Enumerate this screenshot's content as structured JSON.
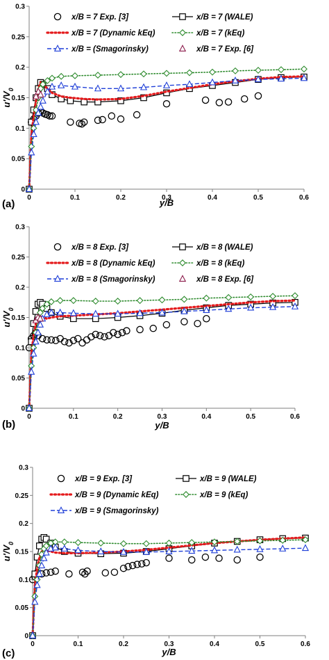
{
  "chart_data": [
    {
      "type": "line",
      "panel_label": "(a)",
      "xlabel": "y/B",
      "ylabel": "u'/V0",
      "xlim": [
        0,
        0.6
      ],
      "ylim": [
        0,
        0.3
      ],
      "x_ticks": [
        "0",
        "0.1",
        "0.2",
        "0.3",
        "0.4",
        "0.5",
        "0.6"
      ],
      "y_ticks": [
        "0",
        "0.05",
        "0.1",
        "0.15",
        "0.2",
        "0.25",
        "0.3"
      ],
      "grid": false,
      "legend_position": "top",
      "series": [
        {
          "name": "x/B = 7 Exp. [3]",
          "style": "marker-circle",
          "color": "#000000",
          "x": [
            0.005,
            0.01,
            0.015,
            0.02,
            0.025,
            0.03,
            0.035,
            0.04,
            0.045,
            0.05,
            0.09,
            0.11,
            0.115,
            0.12,
            0.15,
            0.16,
            0.18,
            0.2,
            0.235,
            0.3,
            0.385,
            0.415,
            0.435,
            0.47,
            0.5
          ],
          "y": [
            0.11,
            0.115,
            0.12,
            0.125,
            0.127,
            0.125,
            0.123,
            0.122,
            0.12,
            0.12,
            0.11,
            0.108,
            0.107,
            0.11,
            0.113,
            0.114,
            0.12,
            0.115,
            0.122,
            0.14,
            0.146,
            0.142,
            0.143,
            0.148,
            0.153
          ]
        },
        {
          "name": "x/B = 7 (WALE)",
          "style": "line-square",
          "color": "#000000",
          "x": [
            0,
            0.005,
            0.01,
            0.015,
            0.02,
            0.025,
            0.03,
            0.04,
            0.05,
            0.07,
            0.09,
            0.12,
            0.15,
            0.2,
            0.25,
            0.3,
            0.35,
            0.4,
            0.45,
            0.5,
            0.55,
            0.6
          ],
          "y": [
            0,
            0.11,
            0.13,
            0.15,
            0.165,
            0.175,
            0.172,
            0.165,
            0.155,
            0.148,
            0.145,
            0.143,
            0.143,
            0.145,
            0.15,
            0.158,
            0.165,
            0.17,
            0.175,
            0.18,
            0.183,
            0.184
          ]
        },
        {
          "name": "x/B = 7 (Dynamic kEq)",
          "style": "dotted-red",
          "color": "#e41a1c",
          "x": [
            0,
            0.005,
            0.01,
            0.015,
            0.02,
            0.025,
            0.03,
            0.04,
            0.05,
            0.07,
            0.09,
            0.12,
            0.15,
            0.2,
            0.25,
            0.3,
            0.35,
            0.4,
            0.45,
            0.5,
            0.55,
            0.6
          ],
          "y": [
            0,
            0.09,
            0.12,
            0.145,
            0.165,
            0.175,
            0.172,
            0.165,
            0.158,
            0.152,
            0.15,
            0.148,
            0.147,
            0.148,
            0.153,
            0.16,
            0.166,
            0.172,
            0.177,
            0.181,
            0.184,
            0.185
          ]
        },
        {
          "name": "x/B = 7 (kEq)",
          "style": "dotted-diamond",
          "color": "#2e8b2e",
          "x": [
            0,
            0.005,
            0.01,
            0.015,
            0.02,
            0.025,
            0.03,
            0.04,
            0.05,
            0.07,
            0.1,
            0.15,
            0.2,
            0.25,
            0.3,
            0.35,
            0.4,
            0.45,
            0.5,
            0.55,
            0.6
          ],
          "y": [
            0,
            0.07,
            0.1,
            0.13,
            0.15,
            0.165,
            0.172,
            0.178,
            0.182,
            0.185,
            0.186,
            0.187,
            0.188,
            0.189,
            0.19,
            0.191,
            0.192,
            0.194,
            0.195,
            0.196,
            0.197
          ]
        },
        {
          "name": "x/B = (Smagorinsky)",
          "style": "dash-triangle",
          "color": "#1f3fd8",
          "x": [
            0,
            0.005,
            0.01,
            0.015,
            0.02,
            0.025,
            0.03,
            0.04,
            0.05,
            0.07,
            0.1,
            0.15,
            0.2,
            0.25,
            0.3,
            0.35,
            0.4,
            0.45,
            0.5,
            0.55,
            0.6
          ],
          "y": [
            0,
            0.06,
            0.09,
            0.11,
            0.125,
            0.135,
            0.145,
            0.16,
            0.168,
            0.17,
            0.168,
            0.165,
            0.165,
            0.167,
            0.17,
            0.172,
            0.175,
            0.178,
            0.18,
            0.181,
            0.182
          ]
        },
        {
          "name": "x/B = 7 Exp. [6]",
          "style": "marker-triangle",
          "color": "#8b1a4a",
          "x": [
            0.015,
            0.02,
            0.025
          ],
          "y": [
            0.152,
            0.16,
            0.155
          ]
        }
      ]
    },
    {
      "type": "line",
      "panel_label": "(b)",
      "xlabel": "y/B",
      "ylabel": "u'/V0",
      "xlim": [
        0,
        0.6
      ],
      "ylim": [
        0,
        0.3
      ],
      "x_ticks": [
        "0",
        "0.1",
        "0.2",
        "0.3",
        "0.4",
        "0.5",
        "0.6"
      ],
      "y_ticks": [
        "0",
        "0.05",
        "0.1",
        "0.15",
        "0.2",
        "0.25",
        "0.3"
      ],
      "grid": false,
      "legend_position": "top",
      "series": [
        {
          "name": "x/B = 8 Exp. [3]",
          "style": "marker-circle",
          "color": "#000000",
          "x": [
            0.0,
            0.005,
            0.01,
            0.015,
            0.02,
            0.03,
            0.04,
            0.05,
            0.06,
            0.07,
            0.08,
            0.09,
            0.1,
            0.11,
            0.12,
            0.13,
            0.14,
            0.15,
            0.16,
            0.17,
            0.18,
            0.19,
            0.2,
            0.21,
            0.22,
            0.25,
            0.28,
            0.31,
            0.35,
            0.38,
            0.4
          ],
          "y": [
            0.1,
            0.115,
            0.12,
            0.125,
            0.12,
            0.115,
            0.113,
            0.113,
            0.112,
            0.115,
            0.11,
            0.108,
            0.112,
            0.115,
            0.108,
            0.113,
            0.118,
            0.122,
            0.12,
            0.118,
            0.12,
            0.125,
            0.122,
            0.125,
            0.128,
            0.13,
            0.132,
            0.138,
            0.143,
            0.14,
            0.148
          ]
        },
        {
          "name": "x/B = 8 (WALE)",
          "style": "line-square",
          "color": "#000000",
          "x": [
            0,
            0.005,
            0.01,
            0.015,
            0.02,
            0.025,
            0.03,
            0.04,
            0.05,
            0.07,
            0.1,
            0.15,
            0.2,
            0.25,
            0.3,
            0.35,
            0.4,
            0.45,
            0.5,
            0.55,
            0.6
          ],
          "y": [
            0,
            0.11,
            0.14,
            0.16,
            0.172,
            0.175,
            0.172,
            0.165,
            0.158,
            0.152,
            0.148,
            0.148,
            0.15,
            0.153,
            0.157,
            0.162,
            0.166,
            0.17,
            0.172,
            0.174,
            0.175
          ]
        },
        {
          "name": "x/B = 8 (Dynamic kEq)",
          "style": "dotted-red",
          "color": "#e41a1c",
          "x": [
            0,
            0.005,
            0.01,
            0.015,
            0.02,
            0.025,
            0.03,
            0.04,
            0.05,
            0.07,
            0.1,
            0.15,
            0.2,
            0.25,
            0.3,
            0.35,
            0.4,
            0.45,
            0.5,
            0.55,
            0.6
          ],
          "y": [
            0,
            0.09,
            0.12,
            0.14,
            0.15,
            0.152,
            0.15,
            0.148,
            0.15,
            0.152,
            0.153,
            0.155,
            0.157,
            0.16,
            0.163,
            0.166,
            0.169,
            0.172,
            0.175,
            0.177,
            0.178
          ]
        },
        {
          "name": "x/B = 8 (kEq)",
          "style": "dotted-diamond",
          "color": "#2e8b2e",
          "x": [
            0,
            0.005,
            0.01,
            0.015,
            0.02,
            0.025,
            0.03,
            0.04,
            0.05,
            0.07,
            0.1,
            0.15,
            0.2,
            0.25,
            0.3,
            0.35,
            0.4,
            0.45,
            0.5,
            0.55,
            0.6
          ],
          "y": [
            0,
            0.07,
            0.1,
            0.125,
            0.145,
            0.158,
            0.165,
            0.172,
            0.176,
            0.178,
            0.178,
            0.177,
            0.177,
            0.178,
            0.179,
            0.18,
            0.182,
            0.183,
            0.184,
            0.185,
            0.186
          ]
        },
        {
          "name": "x/B = 8 (Smagorinsky)",
          "style": "dash-triangle",
          "color": "#1f3fd8",
          "x": [
            0,
            0.005,
            0.01,
            0.015,
            0.02,
            0.025,
            0.03,
            0.04,
            0.05,
            0.07,
            0.1,
            0.15,
            0.2,
            0.25,
            0.3,
            0.35,
            0.4,
            0.45,
            0.5,
            0.55,
            0.6
          ],
          "y": [
            0,
            0.06,
            0.09,
            0.11,
            0.125,
            0.138,
            0.148,
            0.155,
            0.158,
            0.158,
            0.157,
            0.156,
            0.156,
            0.157,
            0.158,
            0.16,
            0.162,
            0.164,
            0.166,
            0.167,
            0.168
          ]
        },
        {
          "name": "x/B = 8 Exp. [6]",
          "style": "marker-triangle",
          "color": "#8b1a4a",
          "x": [
            0.015,
            0.02,
            0.025
          ],
          "y": [
            0.145,
            0.15,
            0.148
          ]
        }
      ]
    },
    {
      "type": "line",
      "panel_label": "(c)",
      "xlabel": "y/B",
      "ylabel": "u'/V0",
      "xlim": [
        0,
        0.6
      ],
      "ylim": [
        0,
        0.3
      ],
      "x_ticks": [
        "0",
        "0.1",
        "0.2",
        "0.3",
        "0.4",
        "0.5",
        "0.6"
      ],
      "y_ticks": [
        "0",
        "0.05",
        "0.1",
        "0.15",
        "0.2",
        "0.25",
        "0.3"
      ],
      "grid": false,
      "legend_position": "top",
      "series": [
        {
          "name": "x/B = 9 Exp. [3]",
          "style": "marker-circle",
          "color": "#000000",
          "x": [
            0.0,
            0.005,
            0.01,
            0.02,
            0.03,
            0.04,
            0.05,
            0.08,
            0.11,
            0.115,
            0.12,
            0.16,
            0.18,
            0.2,
            0.21,
            0.22,
            0.23,
            0.24,
            0.25,
            0.3,
            0.35,
            0.38,
            0.41,
            0.45,
            0.5
          ],
          "y": [
            0.1,
            0.105,
            0.112,
            0.11,
            0.112,
            0.113,
            0.115,
            0.11,
            0.113,
            0.11,
            0.115,
            0.112,
            0.113,
            0.12,
            0.123,
            0.125,
            0.127,
            0.128,
            0.13,
            0.138,
            0.135,
            0.14,
            0.138,
            0.135,
            0.14
          ]
        },
        {
          "name": "x/B = 9 (WALE)",
          "style": "line-square",
          "color": "#000000",
          "x": [
            0,
            0.005,
            0.01,
            0.015,
            0.02,
            0.025,
            0.03,
            0.04,
            0.05,
            0.07,
            0.1,
            0.15,
            0.2,
            0.25,
            0.3,
            0.35,
            0.4,
            0.45,
            0.5,
            0.55,
            0.6
          ],
          "y": [
            0,
            0.11,
            0.14,
            0.16,
            0.172,
            0.175,
            0.172,
            0.165,
            0.158,
            0.15,
            0.147,
            0.146,
            0.147,
            0.15,
            0.155,
            0.16,
            0.165,
            0.168,
            0.171,
            0.173,
            0.174
          ]
        },
        {
          "name": "x/B = 9 (Dynamic kEq)",
          "style": "dotted-red",
          "color": "#e41a1c",
          "x": [
            0,
            0.005,
            0.01,
            0.015,
            0.02,
            0.025,
            0.03,
            0.04,
            0.05,
            0.07,
            0.1,
            0.15,
            0.2,
            0.25,
            0.3,
            0.35,
            0.4,
            0.45,
            0.5,
            0.55,
            0.6
          ],
          "y": [
            0,
            0.09,
            0.12,
            0.14,
            0.15,
            0.153,
            0.152,
            0.15,
            0.148,
            0.147,
            0.147,
            0.148,
            0.15,
            0.153,
            0.157,
            0.161,
            0.165,
            0.168,
            0.171,
            0.173,
            0.175
          ]
        },
        {
          "name": "x/B = 9 (kEq)",
          "style": "dotted-diamond",
          "color": "#2e8b2e",
          "x": [
            0,
            0.005,
            0.01,
            0.015,
            0.02,
            0.025,
            0.03,
            0.04,
            0.05,
            0.07,
            0.1,
            0.15,
            0.2,
            0.25,
            0.3,
            0.35,
            0.4,
            0.45,
            0.5,
            0.55,
            0.6
          ],
          "y": [
            0,
            0.07,
            0.1,
            0.125,
            0.145,
            0.155,
            0.16,
            0.165,
            0.167,
            0.167,
            0.166,
            0.165,
            0.164,
            0.164,
            0.165,
            0.166,
            0.167,
            0.168,
            0.169,
            0.17,
            0.171
          ]
        },
        {
          "name": "x/B = 9 (Smagorinsky)",
          "style": "dash-triangle",
          "color": "#1f3fd8",
          "x": [
            0,
            0.005,
            0.01,
            0.015,
            0.02,
            0.025,
            0.03,
            0.04,
            0.05,
            0.07,
            0.1,
            0.15,
            0.2,
            0.25,
            0.3,
            0.35,
            0.4,
            0.45,
            0.5,
            0.55,
            0.6
          ],
          "y": [
            0,
            0.06,
            0.09,
            0.11,
            0.125,
            0.138,
            0.148,
            0.155,
            0.157,
            0.155,
            0.152,
            0.15,
            0.149,
            0.149,
            0.15,
            0.151,
            0.152,
            0.153,
            0.154,
            0.155,
            0.156
          ]
        }
      ]
    }
  ]
}
